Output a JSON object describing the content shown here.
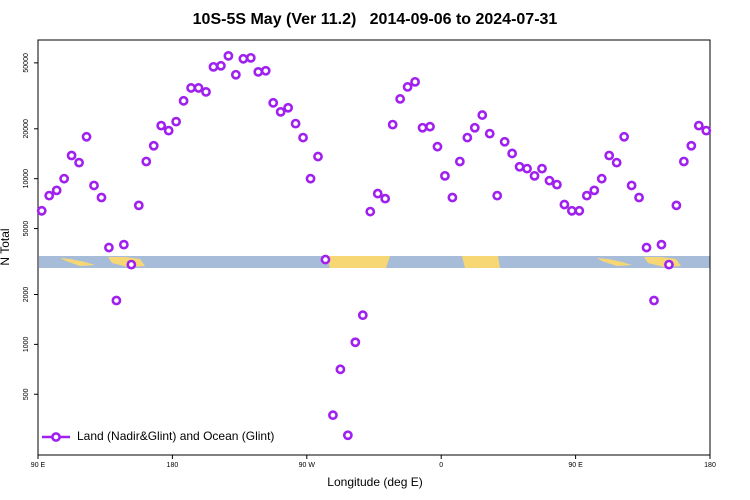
{
  "chart_data": {
    "type": "scatter",
    "title": "10S-5S May (Ver 11.2)   2014-09-06 to 2024-07-31",
    "x_label": "Longitude (deg E)",
    "y_label": "N Total",
    "x": [
      92.5,
      97.5,
      102.5,
      107.5,
      112.5,
      117.5,
      122.5,
      127.5,
      132.5,
      137.5,
      142.5,
      147.5,
      152.5,
      157.5,
      162.5,
      167.5,
      172.5,
      177.5,
      182.5,
      187.5,
      192.5,
      197.5,
      202.5,
      207.5,
      212.5,
      217.5,
      222.5,
      227.5,
      232.5,
      237.5,
      242.5,
      247.5,
      252.5,
      257.5,
      262.5,
      267.5,
      272.5,
      277.5,
      282.5,
      287.5,
      292.5,
      297.5,
      302.5,
      307.5,
      312.5,
      317.5,
      322.5,
      327.5,
      332.5,
      337.5,
      342.5,
      347.5,
      352.5,
      357.5,
      362.5,
      367.5,
      372.5,
      377.5,
      382.5,
      387.5,
      392.5,
      397.5,
      402.5,
      407.5,
      412.5,
      417.5,
      422.5,
      427.5,
      432.5,
      437.5,
      442.5,
      447.5,
      452.5,
      457.5,
      462.5,
      467.5,
      472.5,
      477.5,
      482.5,
      487.5,
      492.5,
      497.5,
      502.5,
      507.5,
      512.5,
      517.5,
      522.5,
      527.5,
      532.5,
      537.5
    ],
    "series": [
      {
        "name": "Land (Nadir&Glint) and Ocean (Glint)",
        "color": "#a020f0",
        "values": [
          6400,
          7900,
          8500,
          10000,
          13800,
          12500,
          17900,
          9100,
          7700,
          3840,
          1840,
          4000,
          3030,
          6900,
          12700,
          15800,
          20900,
          19500,
          22100,
          29500,
          35300,
          35300,
          33400,
          47300,
          48000,
          55100,
          42400,
          52900,
          53600,
          44100,
          44800,
          28700,
          25300,
          26800,
          21500,
          17700,
          10000,
          13600,
          3250,
          374,
          707,
          283,
          1030,
          1500,
          6330,
          8130,
          7580,
          21200,
          30300,
          35800,
          38400,
          20300,
          20600,
          15600,
          10400,
          7700,
          12700,
          17700,
          20300,
          24200,
          18700,
          7900,
          16700,
          14200,
          11800,
          11500,
          10400,
          11500,
          9730,
          9210,
          6980,
          6400,
          6400,
          7900,
          8500,
          10000,
          13800,
          12500,
          17900,
          9100,
          7700,
          3840,
          1840,
          4000,
          3030,
          6900,
          12700,
          15800,
          20900,
          19500
        ]
      }
    ],
    "xlim": [
      90,
      540
    ],
    "xticks": [
      {
        "value": 90,
        "label": "90 E"
      },
      {
        "value": 180,
        "label": "180"
      },
      {
        "value": 270,
        "label": "90 W"
      },
      {
        "value": 360,
        "label": "0"
      },
      {
        "value": 450,
        "label": "90 E"
      },
      {
        "value": 540,
        "label": "180"
      }
    ],
    "ylim": [
      215,
      68700
    ],
    "yticks": [
      500,
      1000,
      2000,
      5000,
      10000,
      20000,
      50000
    ],
    "log_y": true,
    "legend": "bottom left"
  }
}
